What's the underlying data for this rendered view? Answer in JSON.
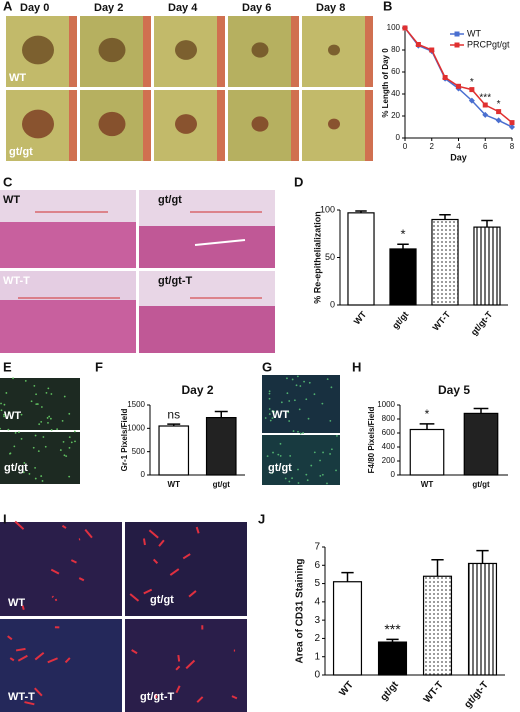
{
  "figure": {
    "panel_letters": [
      "A",
      "B",
      "C",
      "D",
      "E",
      "F",
      "G",
      "H",
      "I",
      "J"
    ],
    "a_columns": [
      "Day 0",
      "Day 2",
      "Day 4",
      "Day 6",
      "Day 8"
    ],
    "a_rows": [
      "WT",
      "gt/gt"
    ],
    "c_labels": [
      "WT",
      "gt/gt",
      "WT-T",
      "gt/gt-T"
    ],
    "e_labels": [
      "WT",
      "gt/gt"
    ],
    "g_labels": [
      "WT",
      "gt/gt"
    ],
    "i_labels": [
      "WT",
      "gt/gt",
      "WT-T",
      "gt/gt-T"
    ]
  },
  "chart_data": [
    {
      "type": "line",
      "x_label": "Day",
      "y_label": "% Length of Day 0",
      "x": [
        0,
        1,
        2,
        3,
        4,
        5,
        6,
        7,
        8
      ],
      "series": [
        {
          "name": "WT",
          "color": "#4a6fd0",
          "marker": "diamond",
          "values": [
            100,
            84,
            79,
            54,
            45,
            34,
            21,
            16,
            10
          ]
        },
        {
          "name": "PRCPgt/gt",
          "color": "#e03030",
          "marker": "square",
          "values": [
            100,
            85,
            80,
            55,
            47,
            44,
            30,
            24,
            14
          ]
        }
      ],
      "annotations": [
        {
          "text": "*",
          "x": 5
        },
        {
          "text": "***",
          "x": 6
        },
        {
          "text": "*",
          "x": 7
        }
      ],
      "xlim": [
        0,
        8
      ],
      "xticks": [
        0,
        2,
        4,
        6,
        8
      ],
      "ylim": [
        0,
        100
      ],
      "yticks": [
        0,
        20,
        40,
        60,
        80,
        100
      ],
      "legend": "upper right"
    },
    {
      "type": "bar",
      "y_label": "% Re-epithelialization",
      "categories": [
        "WT",
        "gt/gt",
        "WT-T",
        "gt/gt-T"
      ],
      "values": [
        97,
        59,
        90,
        82
      ],
      "errors": [
        2,
        5,
        5,
        7
      ],
      "colors": [
        "#ffffff",
        "#000000",
        "#ffffff",
        "#ffffff"
      ],
      "hatches": [
        null,
        null,
        "dots",
        "vlines"
      ],
      "annotations": [
        {
          "text": "*",
          "category": "gt/gt"
        }
      ],
      "ylim": [
        0,
        100
      ],
      "yticks": [
        0,
        50,
        100
      ]
    },
    {
      "type": "bar",
      "title": "Day 2",
      "y_label": "Gr-1 Pixels/Field",
      "categories": [
        "WT",
        "gt/gt"
      ],
      "values": [
        1050,
        1230
      ],
      "errors": [
        40,
        130
      ],
      "colors": [
        "#ffffff",
        "#222222"
      ],
      "hatches": [
        null,
        null
      ],
      "annotations": [
        {
          "text": "ns",
          "category": "WT"
        }
      ],
      "ylim": [
        0,
        1500
      ],
      "yticks": [
        0,
        500,
        1000,
        1500
      ]
    },
    {
      "type": "bar",
      "title": "Day 5",
      "y_label": "F4/80 Pixels/Field",
      "categories": [
        "WT",
        "gt/gt"
      ],
      "values": [
        650,
        880
      ],
      "errors": [
        80,
        70
      ],
      "colors": [
        "#ffffff",
        "#222222"
      ],
      "hatches": [
        null,
        null
      ],
      "annotations": [
        {
          "text": "*",
          "category": "WT"
        }
      ],
      "ylim": [
        0,
        1000
      ],
      "yticks": [
        0,
        200,
        400,
        600,
        800,
        1000
      ]
    },
    {
      "type": "bar",
      "y_label": "Area of CD31 Staining",
      "categories": [
        "WT",
        "gt/gt",
        "WT-T",
        "gt/gt-T"
      ],
      "values": [
        5.1,
        1.8,
        5.4,
        6.1
      ],
      "errors": [
        0.5,
        0.15,
        0.9,
        0.7
      ],
      "colors": [
        "#ffffff",
        "#000000",
        "#ffffff",
        "#ffffff"
      ],
      "hatches": [
        null,
        null,
        "dots",
        "vlines"
      ],
      "annotations": [
        {
          "text": "***",
          "category": "gt/gt"
        }
      ],
      "ylim": [
        0,
        7
      ],
      "yticks": [
        0,
        1,
        2,
        3,
        4,
        5,
        6,
        7
      ]
    }
  ]
}
